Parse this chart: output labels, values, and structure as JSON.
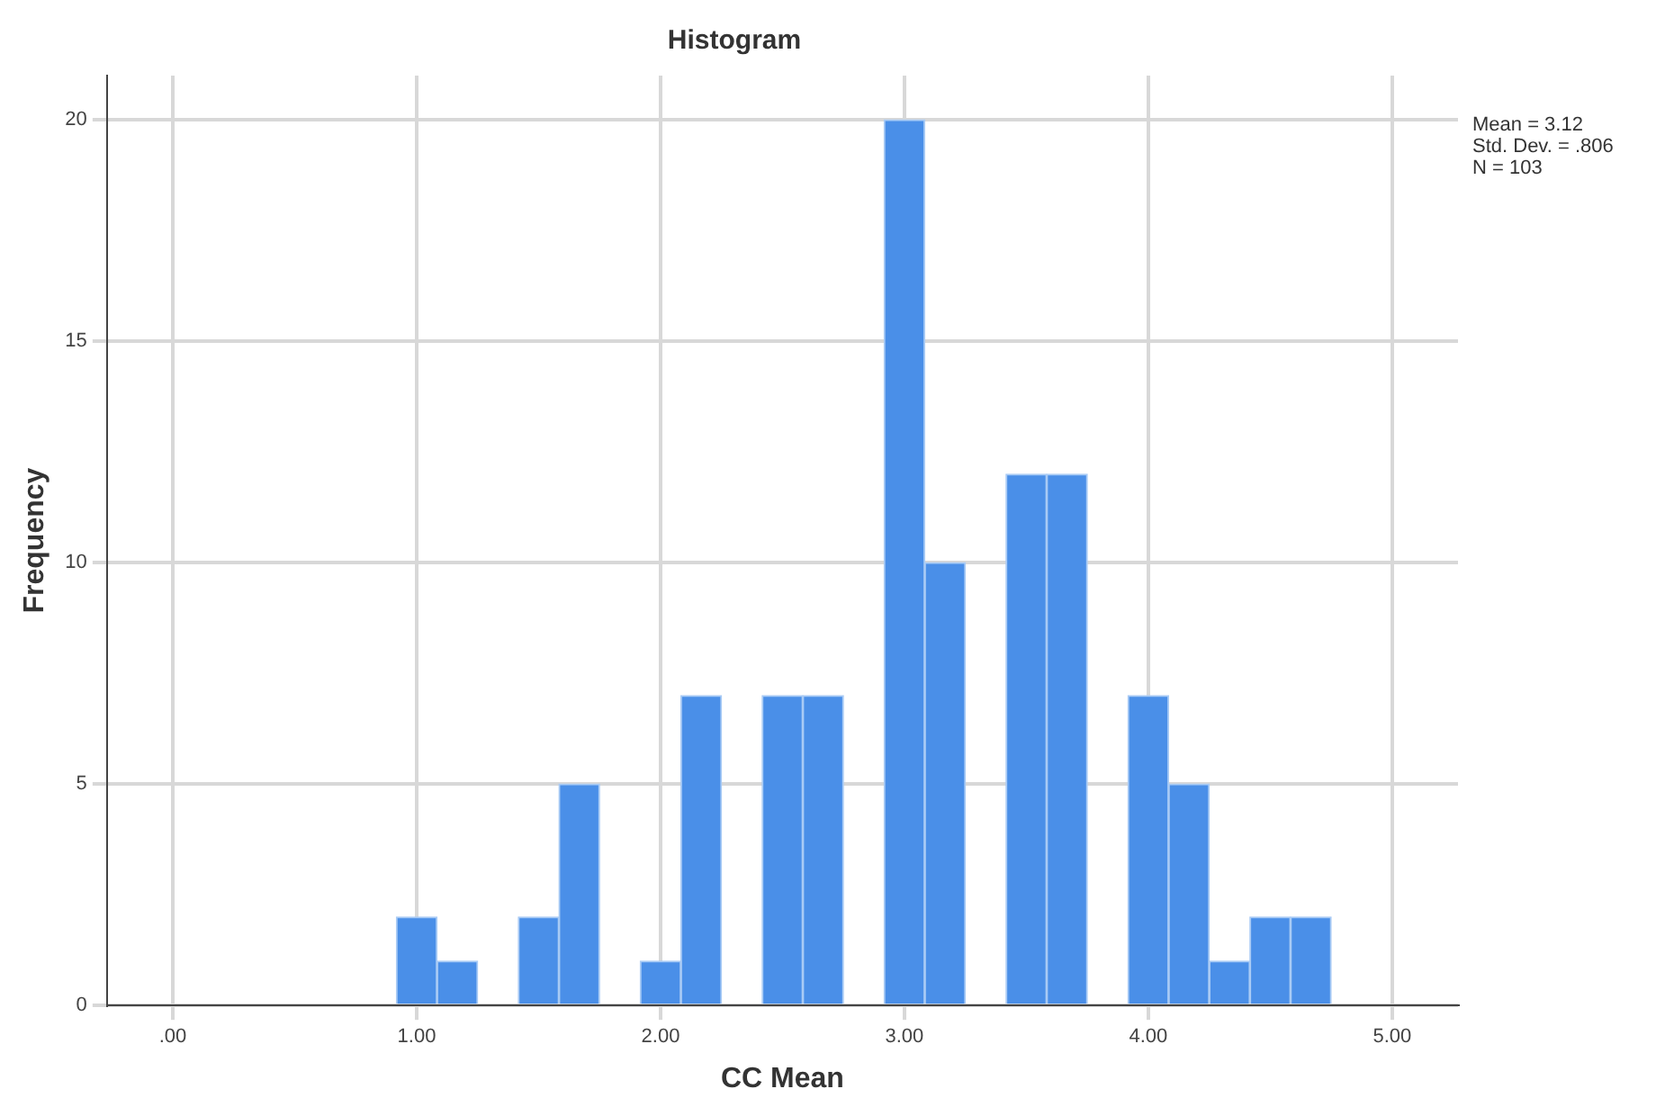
{
  "chart_data": {
    "type": "histogram",
    "title": "Histogram",
    "xlabel": "CC Mean",
    "ylabel": "Frequency",
    "bins": [
      0.9167,
      1.0833,
      1.25,
      1.4167,
      1.5833,
      1.75,
      1.9167,
      2.0833,
      2.25,
      2.4167,
      2.5833,
      2.75,
      2.9167,
      3.0833,
      3.25,
      3.4167,
      3.5833,
      3.75,
      3.9167,
      4.0833,
      4.25,
      4.4167,
      4.5833,
      4.75
    ],
    "values": [
      2,
      1,
      0,
      2,
      5,
      0,
      1,
      7,
      0,
      7,
      7,
      0,
      20,
      10,
      0,
      12,
      12,
      0,
      7,
      5,
      1,
      2,
      2
    ],
    "color": "#4a8fe8",
    "xlim": [
      -0.27,
      5.27
    ],
    "xticks": [
      {
        "value": 0,
        "label": ".00"
      },
      {
        "value": 1,
        "label": "1.00"
      },
      {
        "value": 2,
        "label": "2.00"
      },
      {
        "value": 3,
        "label": "3.00"
      },
      {
        "value": 4,
        "label": "4.00"
      },
      {
        "value": 5,
        "label": "5.00"
      }
    ],
    "ylim": [
      0,
      21
    ],
    "yticks": [
      0,
      5,
      10,
      15,
      20
    ],
    "grid": true,
    "legend": false,
    "annotations": [
      "Mean = 3.12",
      "Std. Dev. = .806",
      "N = 103"
    ]
  }
}
